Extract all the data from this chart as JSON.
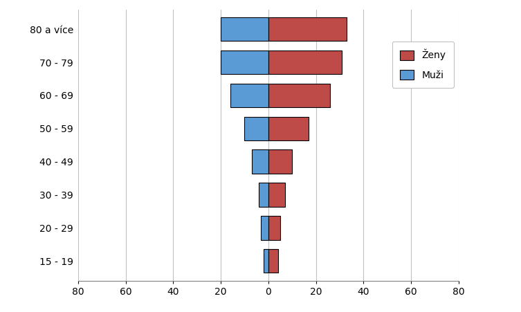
{
  "age_groups": [
    "15 - 19",
    "20 - 29",
    "30 - 39",
    "40 - 49",
    "50 - 59",
    "60 - 69",
    "70 - 79",
    "80 a více"
  ],
  "muzi": [
    2,
    3,
    4,
    7,
    10,
    16,
    20,
    20
  ],
  "zeny": [
    4,
    5,
    7,
    10,
    17,
    26,
    31,
    33
  ],
  "muzi_color": "#5B9BD5",
  "zeny_color": "#BE4B48",
  "xlim": [
    -80,
    80
  ],
  "xticks": [
    -80,
    -60,
    -40,
    -20,
    0,
    20,
    40,
    60,
    80
  ],
  "xticklabels": [
    "80",
    "60",
    "40",
    "20",
    "0",
    "20",
    "40",
    "60",
    "80"
  ],
  "legend_zeny": "Ženy",
  "legend_muzi": "Muži",
  "bar_edgecolor": "#000000",
  "bar_linewidth": 0.8,
  "bar_height": 0.72,
  "grid_color": "#C0C0C0",
  "background_color": "#FFFFFF",
  "spine_color": "#808080",
  "figsize": [
    7.53,
    4.51
  ],
  "dpi": 100
}
